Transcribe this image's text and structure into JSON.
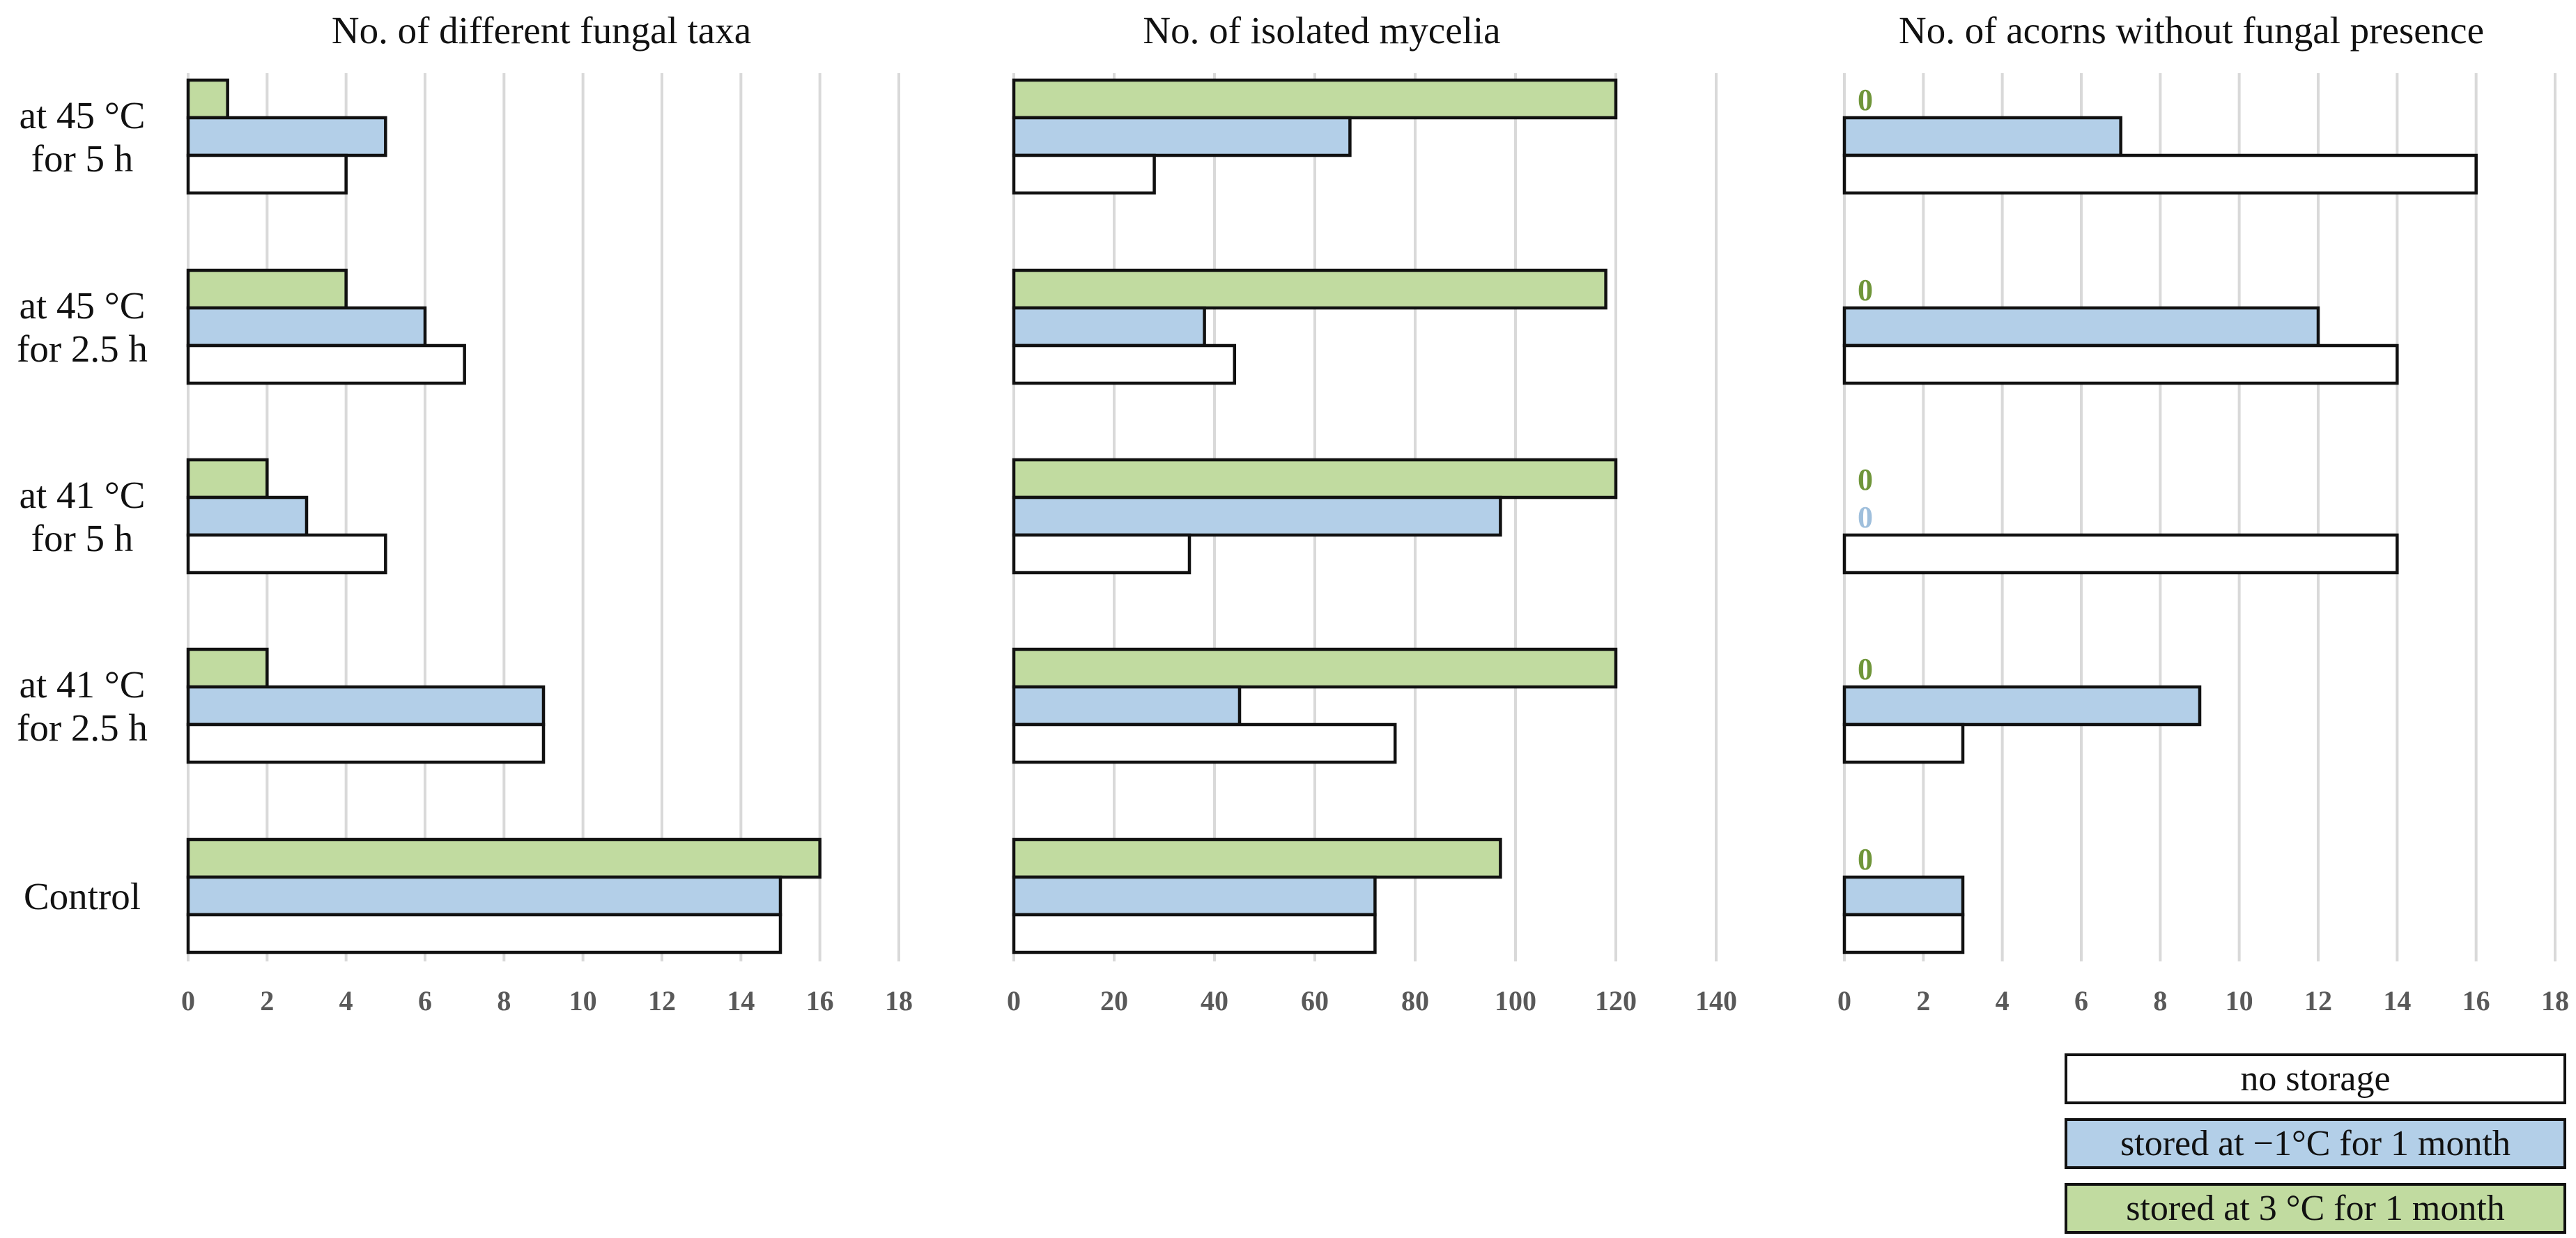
{
  "chart_data": [
    {
      "type": "bar",
      "orientation": "horizontal",
      "title": "No. of different fungal taxa",
      "categories": [
        "at 45 °C for 5 h",
        "at 45 °C for 2.5 h",
        "at 41 °C for 5 h",
        "at 41 °C for 2.5 h",
        "Control"
      ],
      "series": [
        {
          "name": "stored at 3 °C for 1 month",
          "color": "#c1dba0",
          "values": [
            1,
            4,
            2,
            2,
            16
          ]
        },
        {
          "name": "stored at −1°C for 1 month",
          "color": "#b3cfe8",
          "values": [
            5,
            6,
            3,
            9,
            15
          ]
        },
        {
          "name": "no storage",
          "color": "#ffffff",
          "values": [
            4,
            7,
            5,
            9,
            15
          ]
        }
      ],
      "xlim": [
        0,
        18
      ],
      "ticks": [
        "0",
        "2",
        "4",
        "6",
        "8",
        "10",
        "12",
        "14",
        "16",
        "18"
      ],
      "grid": true
    },
    {
      "type": "bar",
      "orientation": "horizontal",
      "title": "No. of isolated mycelia",
      "categories": [
        "at 45 °C for 5 h",
        "at 45 °C for 2.5 h",
        "at 41 °C for 5 h",
        "at 41 °C for 2.5 h",
        "Control"
      ],
      "series": [
        {
          "name": "stored at 3 °C for 1 month",
          "color": "#c1dba0",
          "values": [
            120,
            118,
            120,
            120,
            97
          ]
        },
        {
          "name": "stored at −1°C for 1 month",
          "color": "#b3cfe8",
          "values": [
            67,
            38,
            97,
            45,
            72
          ]
        },
        {
          "name": "no storage",
          "color": "#ffffff",
          "values": [
            28,
            44,
            35,
            76,
            72
          ]
        }
      ],
      "xlim": [
        0,
        140
      ],
      "ticks": [
        "0",
        "20",
        "40",
        "60",
        "80",
        "100",
        "120",
        "140"
      ],
      "grid": true
    },
    {
      "type": "bar",
      "orientation": "horizontal",
      "title": "No. of acorns without fungal presence",
      "categories": [
        "at 45 °C for 5 h",
        "at 45 °C for 2.5 h",
        "at 41 °C for 5 h",
        "at 41 °C for 2.5 h",
        "Control"
      ],
      "series": [
        {
          "name": "stored at 3 °C for 1 month",
          "color": "#c1dba0",
          "values": [
            0,
            0,
            0,
            0,
            0
          ]
        },
        {
          "name": "stored at −1°C for 1 month",
          "color": "#b3cfe8",
          "values": [
            7,
            12,
            0,
            9,
            3
          ]
        },
        {
          "name": "no storage",
          "color": "#ffffff",
          "values": [
            16,
            14,
            14,
            3,
            3
          ]
        }
      ],
      "xlim": [
        0,
        18
      ],
      "ticks": [
        "0",
        "2",
        "4",
        "6",
        "8",
        "10",
        "12",
        "14",
        "16",
        "18"
      ],
      "grid": true,
      "zero_label": "0",
      "zero_label_colors": {
        "stored at 3 °C for 1 month": "#70963a",
        "stored at −1°C for 1 month": "#9fbfdc"
      }
    }
  ],
  "category_labels": [
    [
      "at 45 °C",
      "for 5 h"
    ],
    [
      "at 45 °C",
      "for 2.5 h"
    ],
    [
      "at 41 °C",
      "for 5 h"
    ],
    [
      "at 41 °C",
      "for 2.5 h"
    ],
    [
      "Control"
    ]
  ],
  "legend": [
    {
      "label": "no storage",
      "color": "#ffffff"
    },
    {
      "label": "stored at −1°C for 1 month",
      "color": "#b3cfe8"
    },
    {
      "label": "stored at 3 °C for 1 month",
      "color": "#c1dba0"
    }
  ],
  "colors": {
    "grid": "#d9d9d9",
    "bar_border": "#111111",
    "tick": "#595959"
  }
}
